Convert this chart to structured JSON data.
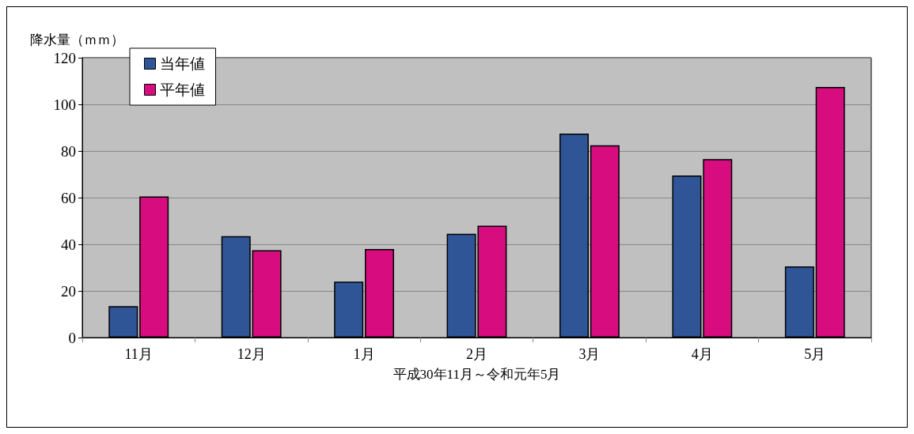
{
  "chart_data": {
    "type": "bar",
    "xlabel": "平成30年11月～令和元年5月",
    "ylabel": "降水量（ｍｍ）",
    "categories": [
      "11月",
      "12月",
      "1月",
      "2月",
      "3月",
      "4月",
      "5月"
    ],
    "series": [
      {
        "name": "当年値",
        "color": "#2f5597",
        "values": [
          13.5,
          43.5,
          24,
          44.5,
          87.5,
          69.5,
          30.5
        ]
      },
      {
        "name": "平年値",
        "color": "#d60c7f",
        "values": [
          60.5,
          37.5,
          38,
          48,
          82.5,
          76.5,
          107.5
        ]
      }
    ],
    "ylim": [
      0,
      120
    ],
    "yticks": [
      0,
      20,
      40,
      60,
      80,
      100,
      120
    ],
    "grid": "y",
    "legend": "top left"
  }
}
